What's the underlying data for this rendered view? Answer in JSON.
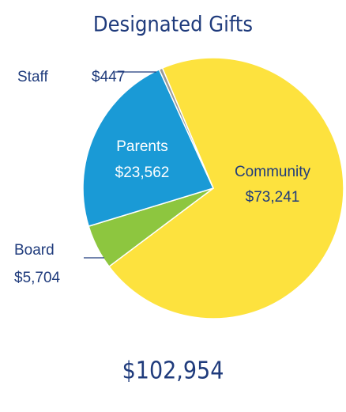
{
  "chart_data": {
    "type": "pie",
    "title": "Designated Gifts",
    "categories": [
      "Community",
      "Board",
      "Parents",
      "Staff"
    ],
    "values": [
      73241,
      5704,
      23562,
      447
    ],
    "value_labels": [
      "$73,241",
      "$5,704",
      "$23,562",
      "$447"
    ],
    "colors": [
      "#fde23e",
      "#8dc63f",
      "#1a9ad6",
      "#9a9a9a"
    ],
    "total": "$102,954"
  }
}
